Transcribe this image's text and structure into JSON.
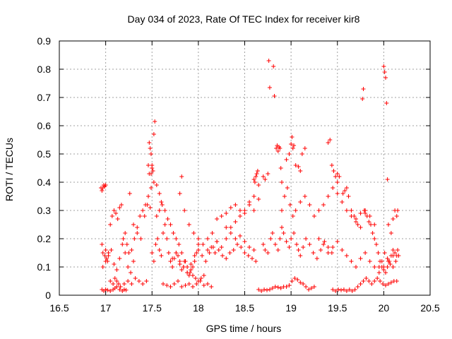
{
  "chart_data": {
    "type": "scatter",
    "title": "Day 034 of 2023, Rate Of TEC Index for receiver kir8",
    "xlabel": "GPS time / hours",
    "ylabel": "ROTI / TECUs",
    "xlim": [
      16.5,
      20.5
    ],
    "ylim": [
      0,
      0.9
    ],
    "xticks": [
      "16.5",
      "17",
      "17.5",
      "18",
      "18.5",
      "19",
      "19.5",
      "20",
      "20.5"
    ],
    "yticks": [
      "0",
      "0.1",
      "0.2",
      "0.3",
      "0.4",
      "0.5",
      "0.6",
      "0.7",
      "0.8",
      "0.9"
    ],
    "grid": true,
    "marker": "+",
    "color": "#ff0000",
    "series": [
      {
        "x": [
          16.95,
          16.96,
          16.97,
          16.98,
          16.99,
          17.0,
          16.96,
          16.97,
          16.99,
          17.0,
          17.01,
          17.02,
          17.03,
          16.96,
          16.98,
          17.0,
          17.02,
          17.05,
          17.08,
          17.1,
          17.12,
          17.15,
          17.18,
          17.2,
          17.22,
          16.97,
          17.0,
          17.03,
          17.06,
          17.09,
          17.12,
          17.15,
          17.18,
          17.21,
          17.24,
          17.27,
          17.3,
          17.05,
          17.07,
          17.09,
          17.11,
          17.13,
          17.15,
          17.17,
          17.19,
          17.21,
          17.23,
          17.25,
          17.28,
          17.31,
          17.34,
          17.37,
          17.4,
          17.43,
          17.46,
          17.49,
          17.52,
          17.55,
          17.58,
          17.6,
          17.05,
          17.08,
          17.1,
          17.12,
          17.14,
          17.16,
          17.2,
          17.24,
          17.28,
          17.32,
          17.36,
          17.4,
          17.44,
          17.26,
          17.3,
          17.34,
          17.38,
          17.42,
          17.45,
          17.48,
          17.47,
          17.48,
          17.49,
          17.5,
          17.46,
          17.47,
          17.49,
          17.5,
          17.51,
          17.52,
          17.53,
          17.5,
          17.52,
          17.54,
          17.56,
          17.58,
          17.6,
          17.62,
          17.64,
          17.66,
          17.68,
          17.7,
          17.72,
          17.74,
          17.76,
          17.78,
          17.8,
          17.82,
          17.84,
          17.86,
          17.88,
          17.9,
          17.92,
          17.94,
          17.96,
          17.98,
          18.0,
          17.55,
          17.58,
          17.61,
          17.64,
          17.67,
          17.7,
          17.73,
          17.76,
          17.79,
          17.82,
          17.85,
          17.88,
          17.91,
          17.94,
          17.97,
          18.0,
          18.03,
          18.06,
          17.62,
          17.66,
          17.7,
          17.74,
          17.78,
          17.82,
          17.86,
          17.9,
          17.94,
          17.98,
          18.02,
          18.06,
          18.1,
          18.14,
          17.72,
          17.76,
          17.8,
          17.84,
          17.88,
          17.92,
          17.96,
          18.0,
          18.04,
          18.08,
          18.12,
          18.16,
          18.2,
          17.82,
          17.8,
          17.85,
          17.9,
          17.95,
          18.0,
          18.05,
          18.1,
          18.15,
          18.2,
          18.25,
          18.3,
          18.35,
          18.4,
          18.45,
          18.5,
          18.55,
          18.6,
          18.1,
          18.14,
          18.18,
          18.22,
          18.26,
          18.3,
          18.34,
          18.38,
          18.42,
          18.46,
          18.5,
          18.54,
          18.58,
          18.62,
          18.2,
          18.25,
          18.3,
          18.35,
          18.4,
          18.45,
          18.5,
          18.55,
          18.6,
          18.65,
          18.3,
          18.35,
          18.4,
          18.45,
          18.5,
          18.55,
          18.6,
          18.62,
          18.63,
          18.64,
          18.6,
          18.61,
          18.65,
          18.7,
          18.72,
          18.75,
          18.65,
          18.68,
          18.71,
          18.74,
          18.77,
          18.8,
          18.83,
          18.86,
          18.89,
          18.92,
          18.95,
          18.98,
          19.01,
          19.04,
          19.07,
          19.1,
          19.13,
          19.16,
          19.19,
          19.22,
          19.25,
          18.7,
          18.72,
          18.75,
          18.78,
          18.8,
          18.83,
          18.86,
          18.88,
          18.9,
          18.92,
          18.95,
          18.98,
          19.0,
          19.03,
          19.06,
          19.08,
          19.1,
          19.13,
          19.16,
          19.2,
          19.24,
          19.28,
          19.32,
          19.36,
          19.4,
          19.44,
          18.76,
          18.77,
          18.81,
          18.82,
          18.84,
          18.85,
          18.86,
          18.87,
          18.88,
          18.89,
          18.9,
          18.95,
          18.98,
          19.0,
          19.01,
          19.02,
          19.03,
          19.05,
          19.08,
          19.1,
          19.12,
          19.15,
          18.9,
          18.93,
          18.96,
          18.99,
          19.02,
          19.05,
          19.1,
          19.15,
          19.2,
          19.25,
          19.3,
          19.35,
          19.4,
          19.45,
          19.5,
          19.55,
          19.6,
          19.65,
          19.7,
          19.75,
          19.8,
          19.85,
          19.9,
          19.4,
          19.42,
          19.44,
          19.46,
          19.48,
          19.5,
          19.45,
          19.48,
          19.51,
          19.54,
          19.57,
          19.6,
          19.63,
          19.66,
          19.69,
          19.72,
          19.75,
          19.78,
          19.81,
          19.84,
          19.87,
          19.9,
          19.93,
          19.96,
          19.99,
          20.02,
          20.05,
          20.08,
          20.11,
          20.14,
          19.3,
          19.35,
          19.4,
          19.45,
          19.5,
          19.55,
          19.6,
          19.65,
          19.7,
          19.75,
          19.8,
          19.85,
          19.9,
          19.95,
          20.0,
          20.05,
          20.1,
          20.15,
          19.5,
          19.52,
          19.56,
          19.58,
          19.6,
          19.62,
          19.65,
          19.68,
          19.7,
          19.72,
          19.75,
          19.77,
          19.78,
          19.79,
          19.8,
          19.82,
          19.84,
          19.86,
          19.88,
          19.9,
          19.92,
          19.94,
          19.96,
          19.98,
          20.0,
          20.02,
          20.04,
          20.06,
          20.08,
          20.1,
          20.12,
          20.14,
          20.0,
          20.01,
          20.02,
          20.03,
          20.04,
          20.05,
          20.08,
          20.1,
          20.12,
          20.14,
          20.15,
          19.95,
          19.98,
          20.01,
          20.04,
          20.07,
          20.1,
          20.13,
          20.16
        ],
        "y": [
          0.38,
          0.37,
          0.38,
          0.39,
          0.385,
          0.39,
          0.18,
          0.15,
          0.14,
          0.16,
          0.13,
          0.12,
          0.15,
          0.02,
          0.015,
          0.02,
          0.018,
          0.015,
          0.02,
          0.025,
          0.03,
          0.02,
          0.015,
          0.02,
          0.018,
          0.1,
          0.12,
          0.14,
          0.16,
          0.11,
          0.09,
          0.13,
          0.18,
          0.15,
          0.1,
          0.08,
          0.12,
          0.25,
          0.28,
          0.3,
          0.29,
          0.27,
          0.31,
          0.32,
          0.2,
          0.22,
          0.18,
          0.15,
          0.16,
          0.2,
          0.24,
          0.28,
          0.3,
          0.32,
          0.35,
          0.38,
          0.4,
          0.39,
          0.36,
          0.33,
          0.05,
          0.04,
          0.06,
          0.05,
          0.04,
          0.03,
          0.04,
          0.05,
          0.04,
          0.06,
          0.05,
          0.04,
          0.05,
          0.36,
          0.25,
          0.22,
          0.2,
          0.28,
          0.32,
          0.31,
          0.54,
          0.52,
          0.5,
          0.46,
          0.46,
          0.43,
          0.43,
          0.45,
          0.44,
          0.57,
          0.615,
          0.15,
          0.12,
          0.18,
          0.2,
          0.16,
          0.14,
          0.22,
          0.25,
          0.2,
          0.15,
          0.12,
          0.1,
          0.13,
          0.15,
          0.14,
          0.11,
          0.09,
          0.1,
          0.12,
          0.08,
          0.07,
          0.09,
          0.1,
          0.12,
          0.15,
          0.18,
          0.28,
          0.3,
          0.32,
          0.3,
          0.27,
          0.25,
          0.22,
          0.2,
          0.18,
          0.15,
          0.12,
          0.1,
          0.08,
          0.07,
          0.06,
          0.05,
          0.06,
          0.07,
          0.04,
          0.035,
          0.03,
          0.04,
          0.05,
          0.03,
          0.035,
          0.04,
          0.03,
          0.04,
          0.05,
          0.035,
          0.04,
          0.03,
          0.13,
          0.15,
          0.12,
          0.1,
          0.08,
          0.11,
          0.14,
          0.16,
          0.14,
          0.12,
          0.15,
          0.17,
          0.19,
          0.42,
          0.36,
          0.3,
          0.25,
          0.22,
          0.2,
          0.18,
          0.2,
          0.22,
          0.19,
          0.17,
          0.2,
          0.24,
          0.26,
          0.28,
          0.3,
          0.32,
          0.3,
          0.16,
          0.17,
          0.15,
          0.16,
          0.14,
          0.13,
          0.15,
          0.16,
          0.18,
          0.17,
          0.15,
          0.14,
          0.13,
          0.12,
          0.27,
          0.28,
          0.29,
          0.31,
          0.32,
          0.3,
          0.29,
          0.33,
          0.35,
          0.34,
          0.24,
          0.22,
          0.2,
          0.21,
          0.19,
          0.17,
          0.16,
          0.42,
          0.43,
          0.44,
          0.41,
          0.4,
          0.39,
          0.42,
          0.41,
          0.43,
          0.02,
          0.015,
          0.02,
          0.018,
          0.02,
          0.025,
          0.03,
          0.028,
          0.025,
          0.03,
          0.03,
          0.035,
          0.05,
          0.06,
          0.055,
          0.045,
          0.04,
          0.03,
          0.02,
          0.025,
          0.03,
          0.18,
          0.16,
          0.15,
          0.2,
          0.22,
          0.18,
          0.16,
          0.2,
          0.24,
          0.22,
          0.19,
          0.17,
          0.2,
          0.22,
          0.18,
          0.16,
          0.14,
          0.17,
          0.2,
          0.18,
          0.15,
          0.13,
          0.16,
          0.19,
          0.17,
          0.15,
          0.83,
          0.735,
          0.81,
          0.705,
          0.52,
          0.53,
          0.51,
          0.525,
          0.52,
          0.45,
          0.4,
          0.48,
          0.5,
          0.535,
          0.56,
          0.52,
          0.53,
          0.46,
          0.455,
          0.44,
          0.5,
          0.52,
          0.3,
          0.35,
          0.38,
          0.32,
          0.28,
          0.3,
          0.33,
          0.35,
          0.32,
          0.28,
          0.3,
          0.32,
          0.35,
          0.38,
          0.36,
          0.33,
          0.3,
          0.28,
          0.27,
          0.29,
          0.3,
          0.28,
          0.25,
          0.54,
          0.55,
          0.46,
          0.44,
          0.42,
          0.4,
          0.02,
          0.015,
          0.02,
          0.018,
          0.02,
          0.015,
          0.02,
          0.015,
          0.02,
          0.03,
          0.04,
          0.05,
          0.06,
          0.05,
          0.04,
          0.05,
          0.06,
          0.05,
          0.04,
          0.035,
          0.04,
          0.045,
          0.05,
          0.05,
          0.2,
          0.18,
          0.15,
          0.17,
          0.19,
          0.16,
          0.14,
          0.12,
          0.1,
          0.13,
          0.15,
          0.12,
          0.1,
          0.08,
          0.1,
          0.12,
          0.14,
          0.16,
          0.43,
          0.42,
          0.36,
          0.37,
          0.38,
          0.35,
          0.3,
          0.28,
          0.26,
          0.25,
          0.24,
          0.695,
          0.73,
          0.3,
          0.29,
          0.28,
          0.26,
          0.25,
          0.22,
          0.2,
          0.18,
          0.15,
          0.12,
          0.1,
          0.09,
          0.08,
          0.1,
          0.12,
          0.14,
          0.16,
          0.15,
          0.14,
          0.81,
          0.79,
          0.77,
          0.68,
          0.41,
          0.25,
          0.22,
          0.27,
          0.3,
          0.28,
          0.3,
          0.1,
          0.12,
          0.15,
          0.13,
          0.11,
          0.1,
          0.12,
          0.14
        ]
      }
    ]
  }
}
